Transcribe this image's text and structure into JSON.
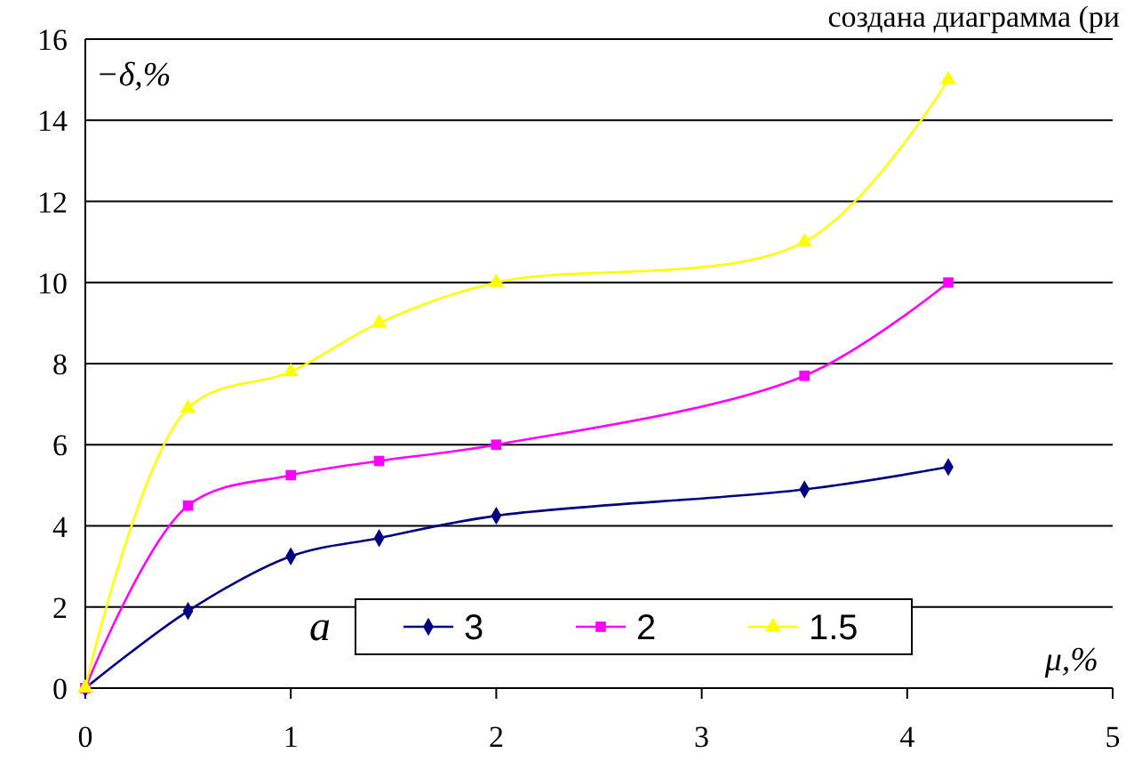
{
  "chart_data": {
    "type": "line",
    "xlabel": "μ,%",
    "ylabel": "−δ,%",
    "annotations": [
      "a",
      "создана диаграмма (ри"
    ],
    "xlim": [
      0,
      5
    ],
    "xticks": [
      0,
      1,
      2,
      3,
      4,
      5
    ],
    "ylim": [
      0,
      16
    ],
    "yticks": [
      0,
      2,
      4,
      6,
      8,
      10,
      12,
      14,
      16
    ],
    "grid": "y",
    "legend": "bottom",
    "x": [
      0,
      0.5,
      1,
      1.43,
      2,
      3.5,
      4.2
    ],
    "series": [
      {
        "name": "3",
        "color": "#000080",
        "marker": "diamond",
        "values": [
          0,
          1.9,
          3.25,
          3.7,
          4.25,
          4.9,
          5.45
        ]
      },
      {
        "name": "2",
        "color": "#ff00ff",
        "marker": "square",
        "values": [
          0,
          4.5,
          5.25,
          5.6,
          6.0,
          7.7,
          10.0
        ]
      },
      {
        "name": "1.5",
        "color": "#ffff00",
        "marker": "triangle",
        "values": [
          0,
          6.9,
          7.8,
          9.0,
          10.0,
          11.0,
          15.0
        ]
      }
    ]
  }
}
